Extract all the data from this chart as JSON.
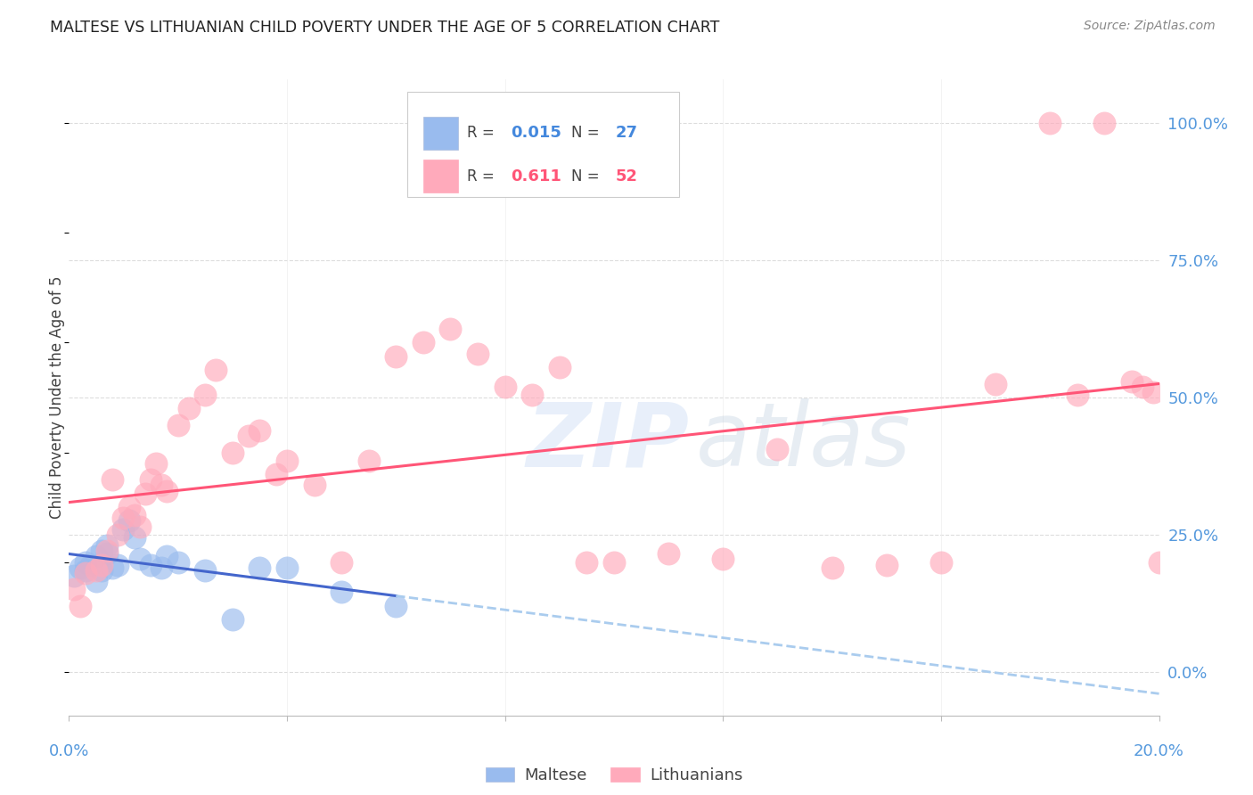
{
  "title": "MALTESE VS LITHUANIAN CHILD POVERTY UNDER THE AGE OF 5 CORRELATION CHART",
  "source": "Source: ZipAtlas.com",
  "ylabel": "Child Poverty Under the Age of 5",
  "maltese_R": "0.015",
  "maltese_N": "27",
  "lithuanian_R": "0.611",
  "lithuanian_N": "52",
  "maltese_color": "#99BBEE",
  "lithuanian_color": "#FFAABB",
  "maltese_line_color": "#4466CC",
  "lithuanian_line_color": "#FF5577",
  "maltese_line_dashed_color": "#AACCEE",
  "background_color": "#FFFFFF",
  "grid_color": "#DDDDDD",
  "title_color": "#222222",
  "source_color": "#888888",
  "axis_label_color": "#444444",
  "tick_label_color": "#5599DD",
  "legend_text_color": "#444444",
  "bottom_legend_color": "#444444",
  "xmin": 0.0,
  "xmax": 0.2,
  "ymin": -0.08,
  "ymax": 1.08,
  "yticks": [
    0.0,
    0.25,
    0.5,
    0.75,
    1.0
  ],
  "ytick_labels": [
    "0.0%",
    "25.0%",
    "50.0%",
    "75.0%",
    "100.0%"
  ],
  "maltese_x": [
    0.001,
    0.002,
    0.003,
    0.003,
    0.004,
    0.005,
    0.005,
    0.006,
    0.006,
    0.007,
    0.007,
    0.008,
    0.009,
    0.01,
    0.011,
    0.012,
    0.013,
    0.015,
    0.017,
    0.018,
    0.02,
    0.025,
    0.03,
    0.035,
    0.04,
    0.05,
    0.06
  ],
  "maltese_y": [
    0.175,
    0.19,
    0.2,
    0.185,
    0.195,
    0.21,
    0.165,
    0.22,
    0.185,
    0.23,
    0.215,
    0.19,
    0.195,
    0.26,
    0.275,
    0.245,
    0.205,
    0.195,
    0.19,
    0.21,
    0.2,
    0.185,
    0.095,
    0.19,
    0.19,
    0.145,
    0.12
  ],
  "lithuanian_x": [
    0.001,
    0.002,
    0.003,
    0.005,
    0.006,
    0.007,
    0.008,
    0.009,
    0.01,
    0.011,
    0.012,
    0.013,
    0.014,
    0.015,
    0.016,
    0.017,
    0.018,
    0.02,
    0.022,
    0.025,
    0.027,
    0.03,
    0.033,
    0.035,
    0.038,
    0.04,
    0.045,
    0.05,
    0.055,
    0.06,
    0.065,
    0.07,
    0.075,
    0.08,
    0.085,
    0.09,
    0.095,
    0.1,
    0.11,
    0.12,
    0.13,
    0.14,
    0.15,
    0.16,
    0.17,
    0.18,
    0.185,
    0.19,
    0.195,
    0.197,
    0.199,
    0.2
  ],
  "lithuanian_y": [
    0.15,
    0.12,
    0.18,
    0.185,
    0.195,
    0.22,
    0.35,
    0.25,
    0.28,
    0.3,
    0.285,
    0.265,
    0.325,
    0.35,
    0.38,
    0.34,
    0.33,
    0.45,
    0.48,
    0.505,
    0.55,
    0.4,
    0.43,
    0.44,
    0.36,
    0.385,
    0.34,
    0.2,
    0.385,
    0.575,
    0.6,
    0.625,
    0.58,
    0.52,
    0.505,
    0.555,
    0.2,
    0.2,
    0.215,
    0.205,
    0.405,
    0.19,
    0.195,
    0.2,
    0.525,
    1.0,
    0.505,
    1.0,
    0.53,
    0.52,
    0.51,
    0.2
  ]
}
